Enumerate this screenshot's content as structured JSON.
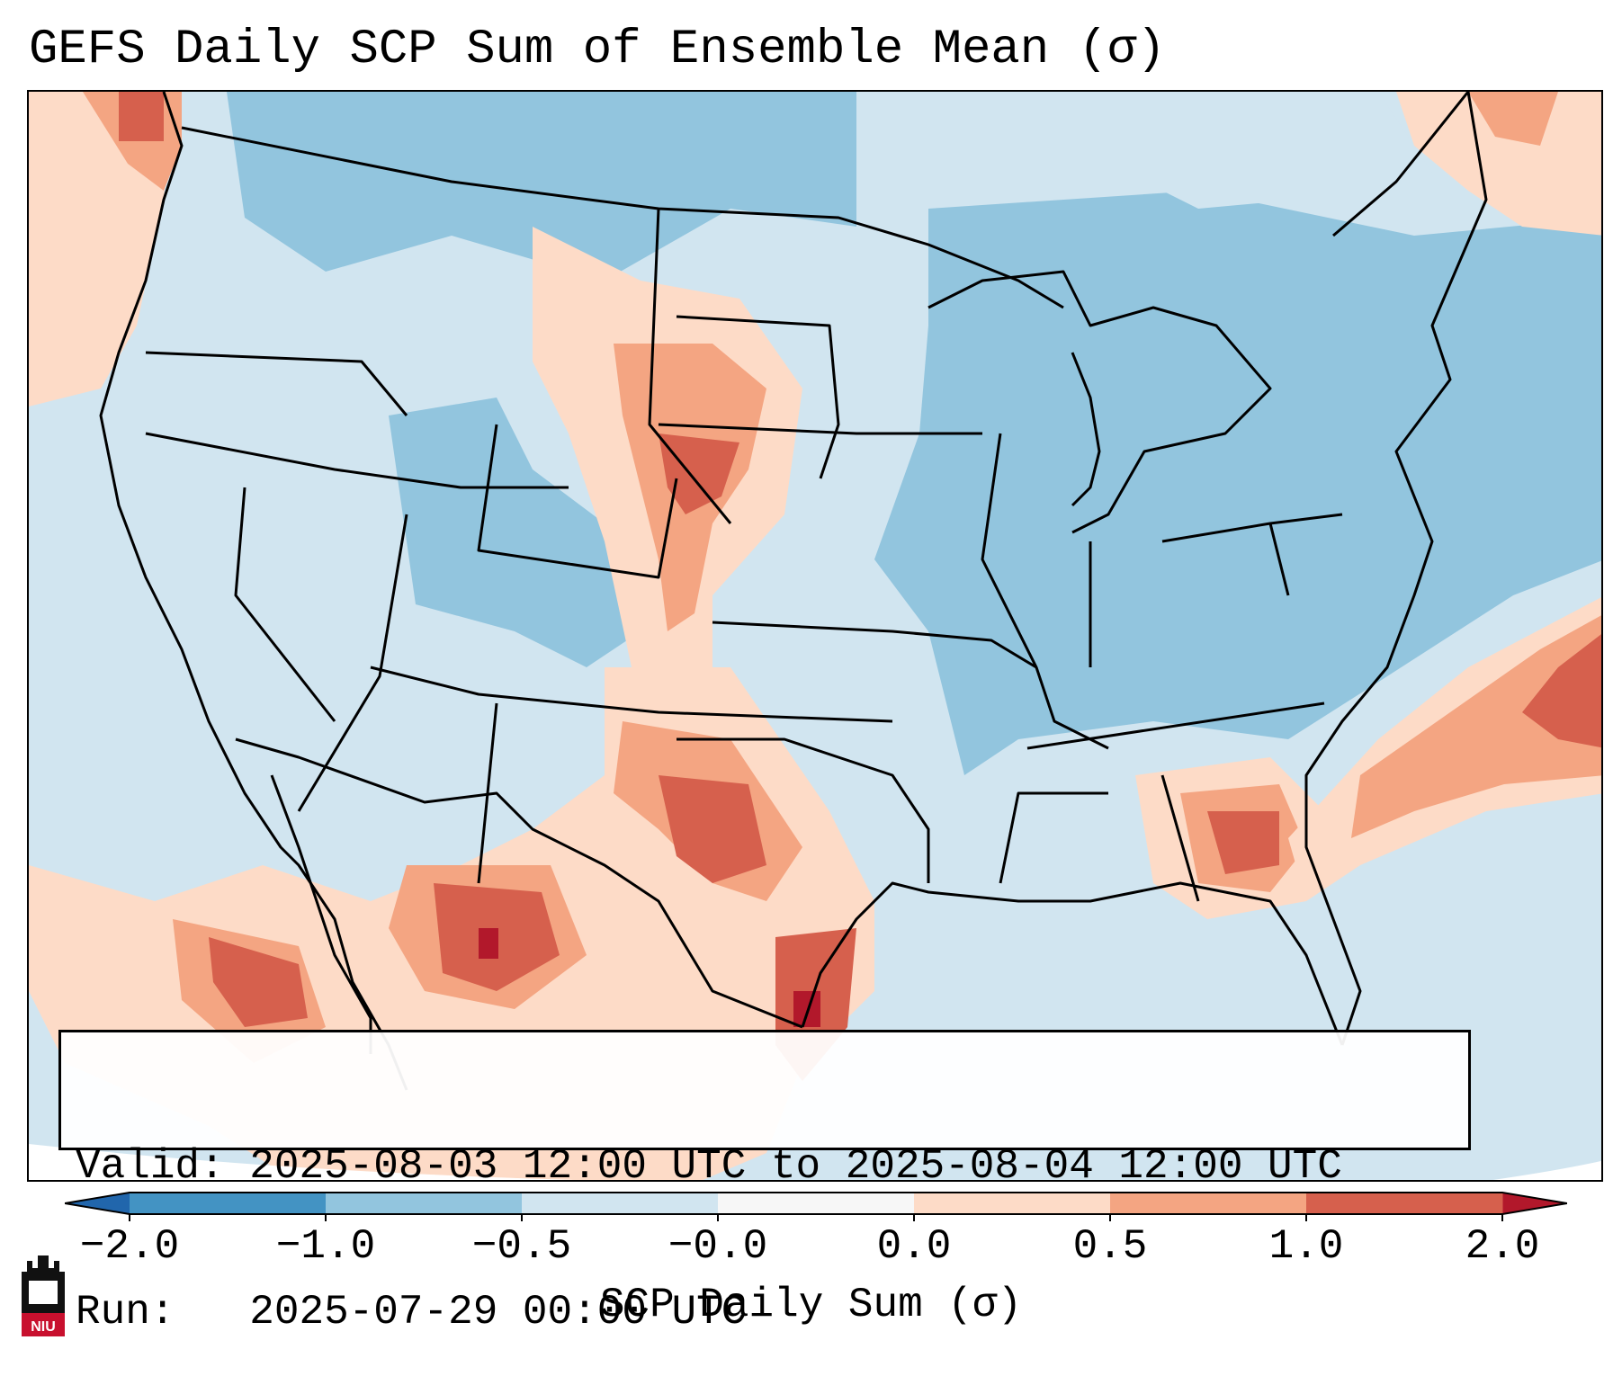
{
  "title": "GEFS Daily SCP Sum of Ensemble Mean (σ)",
  "info_box": {
    "valid_label": "Valid:",
    "valid_value": "2025-08-03 12:00 UTC to 2025-08-04 12:00 UTC",
    "run_label": "Run:",
    "run_value": "2025-07-29 00:00 UTC"
  },
  "colorbar": {
    "label": "SCP Daily Sum (σ)",
    "ticks": [
      "−2.0",
      "−1.0",
      "−0.5",
      "−0.0",
      "0.0",
      "0.5",
      "1.0",
      "2.0"
    ],
    "bins": [
      {
        "from": -2.0,
        "to": -1.0,
        "color": "#4393c3"
      },
      {
        "from": -1.0,
        "to": -0.5,
        "color": "#92c5de"
      },
      {
        "from": -0.5,
        "to": -0.0,
        "color": "#d1e5f0"
      },
      {
        "from": -0.0,
        "to": 0.0,
        "color": "#f7f7f7"
      },
      {
        "from": 0.0,
        "to": 0.5,
        "color": "#fddbc7"
      },
      {
        "from": 0.5,
        "to": 1.0,
        "color": "#f4a582"
      },
      {
        "from": 1.0,
        "to": 2.0,
        "color": "#d6604d"
      }
    ],
    "extend_low_color": "#2166ac",
    "extend_high_color": "#b2182b"
  },
  "logo": {
    "text": "NIU",
    "icon": "niu-logo-icon",
    "color": "#c8102e"
  },
  "colors": {
    "very_low": "#4393c3",
    "low": "#92c5de",
    "near_neutral_low": "#d1e5f0",
    "near_neutral_high": "#fddbc7",
    "high": "#f4a582",
    "very_high": "#d6604d",
    "extreme_high": "#b2182b"
  }
}
